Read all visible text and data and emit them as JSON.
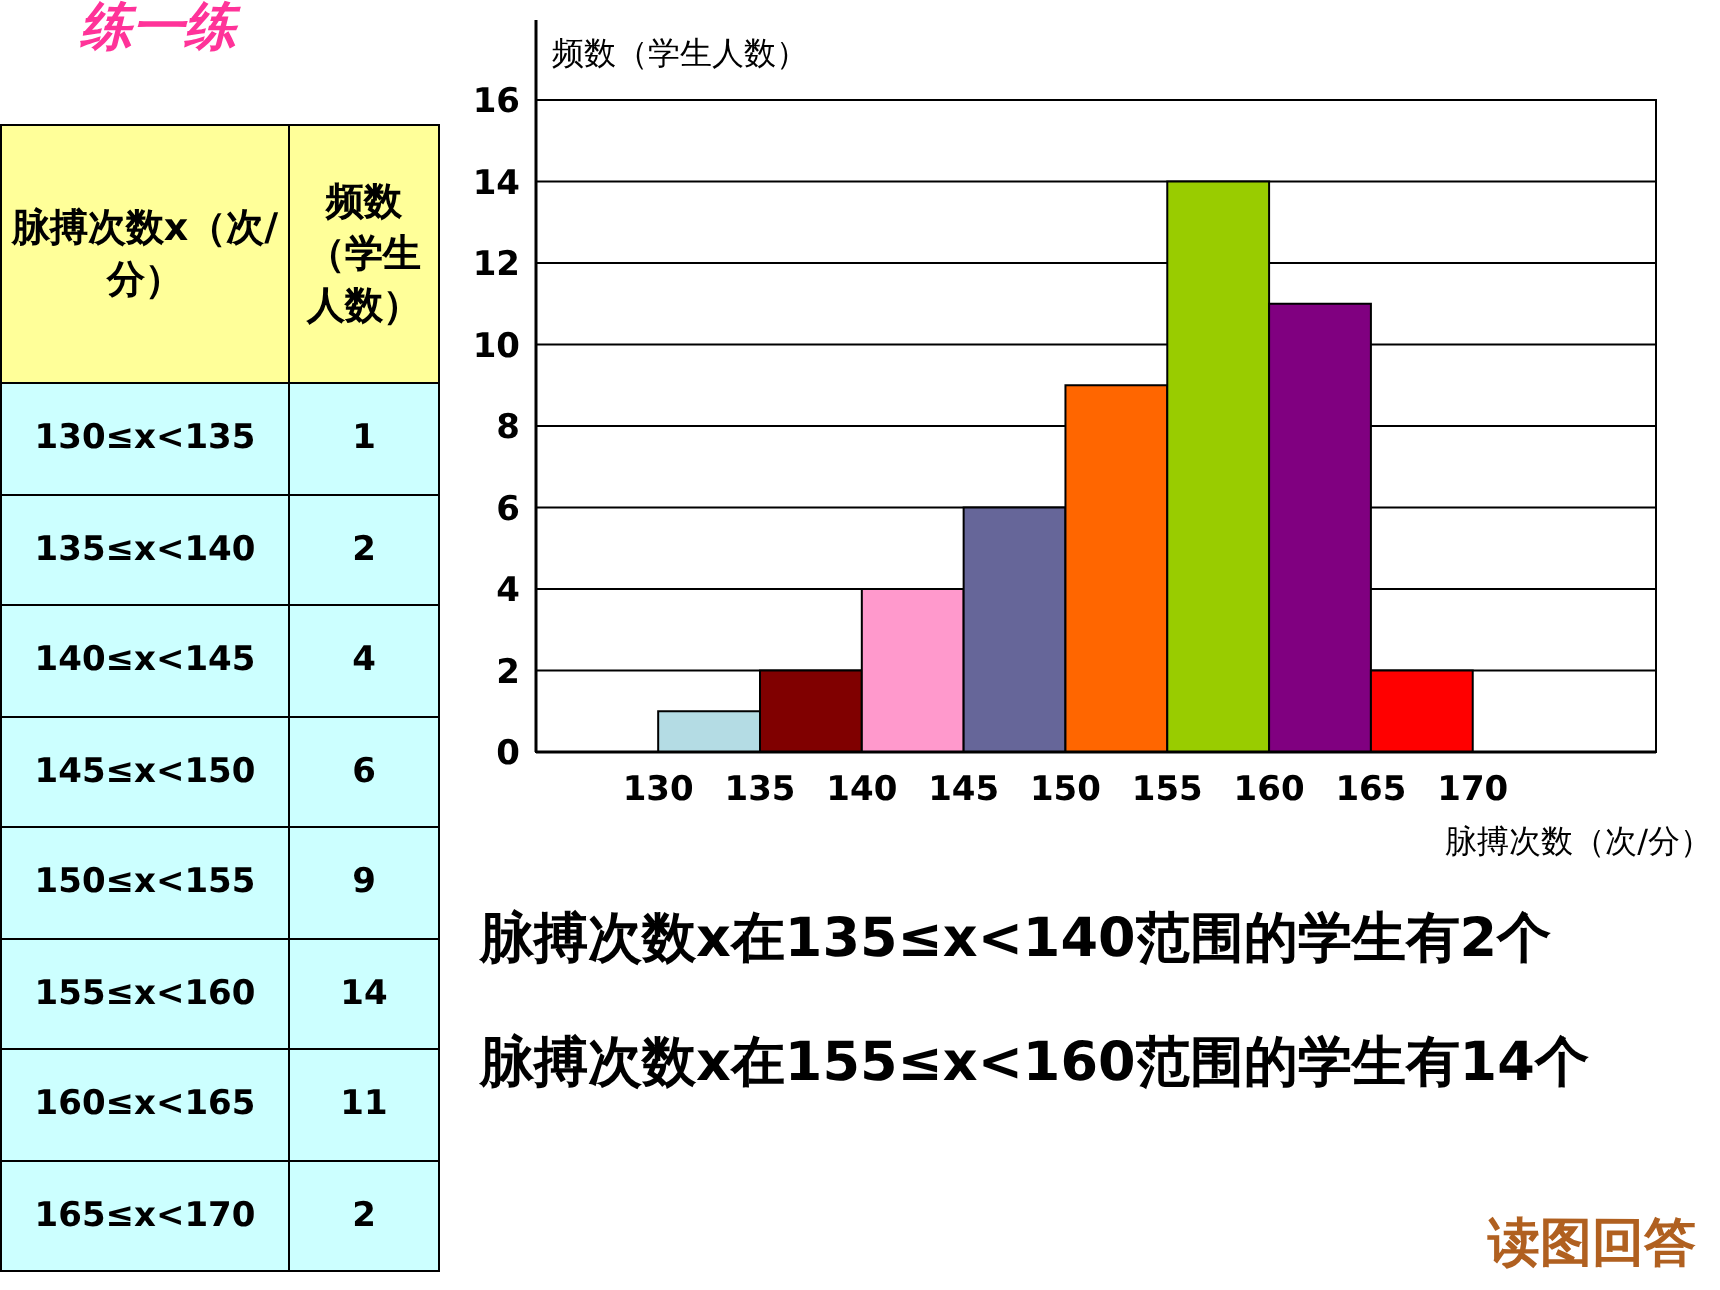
{
  "chart_data": [
    {
      "type": "other",
      "title": "练一练",
      "xlabel": "脉搏次数x（次/分）",
      "ylabel": "频数（学生人数）",
      "categories": [
        "130≤x<135",
        "135≤x<140",
        "140≤x<145",
        "145≤x<150",
        "150≤x<155",
        "155≤x<160",
        "160≤x<165",
        "165≤x<170"
      ],
      "values": [
        1,
        2,
        4,
        6,
        9,
        14,
        11,
        2
      ],
      "data_labels": true
    },
    {
      "type": "histogram",
      "xlabel": "脉搏次数（次/分）",
      "ylabel": "频数（学生人数）",
      "bins": [
        130,
        135,
        140,
        145,
        150,
        155,
        160,
        165,
        170
      ],
      "values": [
        1,
        2,
        4,
        6,
        9,
        14,
        11,
        2
      ],
      "colors": [
        "#b4dce4",
        "#800000",
        "#ff99cc",
        "#666699",
        "#ff6600",
        "#99cc00",
        "#800080",
        "#ff0000"
      ],
      "xlim": [
        124,
        179
      ],
      "ylim": [
        0,
        16
      ],
      "xticks": [
        130,
        135,
        140,
        145,
        150,
        155,
        160,
        165,
        170
      ],
      "yticks": [
        0,
        2,
        4,
        6,
        8,
        10,
        12,
        14,
        16
      ],
      "grid": "y",
      "annotations": [
        "脉搏次数x在135≤x<140范围的学生有2个",
        "脉搏次数x在155≤x<160范围的学生有14个",
        "读图回答"
      ]
    }
  ]
}
